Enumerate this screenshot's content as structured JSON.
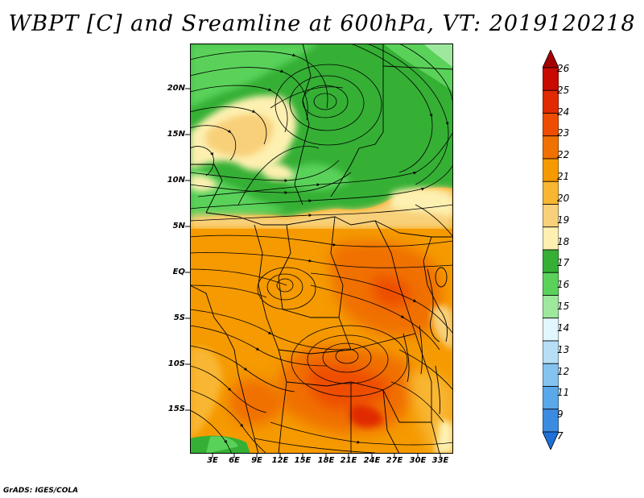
{
  "title": "WBPT [C] and Sreamline at 600hPa, VT: 2019120218",
  "credit": "GrADS: IGES/COLA",
  "lat_labels": [
    "20N",
    "15N",
    "10N",
    "5N",
    "EQ",
    "5S",
    "10S",
    "15S"
  ],
  "lon_labels": [
    "3E",
    "6E",
    "9E",
    "12E",
    "15E",
    "18E",
    "21E",
    "24E",
    "27E",
    "30E",
    "33E"
  ],
  "colorbar": {
    "levels": [
      "26",
      "25",
      "24",
      "23",
      "22",
      "21",
      "20",
      "19",
      "18",
      "17",
      "16",
      "15",
      "14",
      "13",
      "12",
      "11",
      "9",
      "7"
    ],
    "colors": [
      "#a50000",
      "#c80a00",
      "#e02a00",
      "#ee4d00",
      "#f07000",
      "#f59a00",
      "#f8b631",
      "#f8d079",
      "#fdf0b0",
      "#35b035",
      "#5ad25a",
      "#9ee89e",
      "#e2f7fd",
      "#b6dff6",
      "#84c3f0",
      "#58a8ea",
      "#3b8ce1",
      "#1e6fd8"
    ]
  },
  "map": {
    "region": "Central Africa",
    "variable": "WBPT [C]",
    "level": "600hPa",
    "valid_time": "2019120218"
  }
}
